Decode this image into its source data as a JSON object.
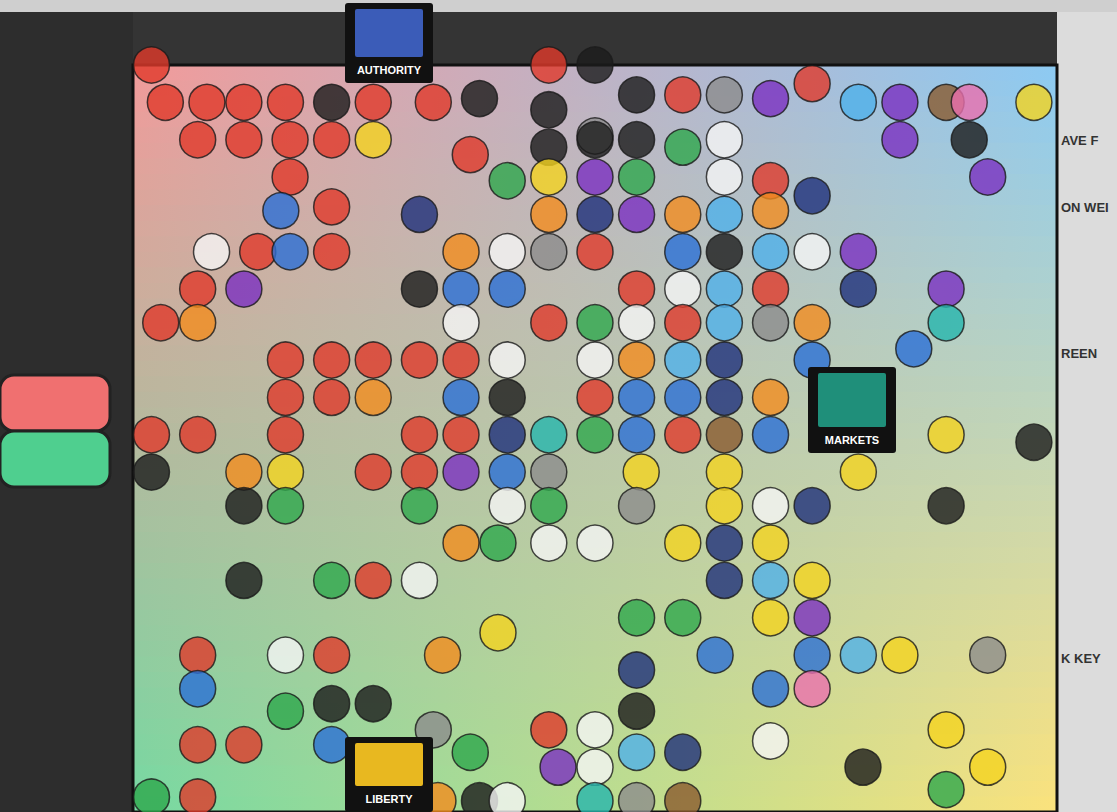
{
  "chart_data": {
    "type": "scatter",
    "annotations": [
      "AUTHORITY",
      "MARKETS",
      "LIBERTY",
      "AVE F",
      "ON WEI",
      "REEN",
      "K KEY"
    ],
    "xlim": [
      -10,
      10
    ],
    "ylim": [
      -10,
      10
    ],
    "tick_labels": false,
    "grid": false,
    "marker": "circle",
    "x": [
      -1.0,
      0.0,
      -9.6,
      -9.3,
      -8.4,
      -7.6,
      -6.7,
      -5.7,
      -4.8,
      -3.5,
      -2.5,
      -1.0,
      0.0,
      0.9,
      1.9,
      2.8,
      3.8,
      4.7,
      5.7,
      6.6,
      7.6,
      8.1,
      9.5,
      -8.6,
      -7.6,
      -6.6,
      -5.7,
      -4.8,
      -2.7,
      -1.9,
      -1.0,
      0.0,
      0.9,
      1.9,
      2.8,
      3.8,
      4.7,
      6.6,
      8.1,
      -6.6,
      -1.0,
      0.0,
      0.9,
      2.8,
      8.5,
      -6.8,
      -5.7,
      -3.8,
      -1.0,
      0.0,
      0.9,
      1.9,
      2.8,
      3.8,
      -8.3,
      -7.3,
      -6.6,
      -5.7,
      -2.9,
      -1.9,
      -1.0,
      0.0,
      1.9,
      2.8,
      3.8,
      4.7,
      5.7,
      -8.6,
      -7.6,
      -3.8,
      -2.9,
      -1.9,
      0.9,
      1.9,
      2.8,
      3.8,
      5.7,
      7.6,
      -9.4,
      -8.6,
      -2.9,
      -1.0,
      0.0,
      0.9,
      1.9,
      2.8,
      3.8,
      4.7,
      7.6,
      -6.7,
      -5.7,
      -4.8,
      -3.8,
      -2.9,
      -1.9,
      0.0,
      0.9,
      1.9,
      2.8,
      4.7,
      6.9,
      -6.7,
      -5.7,
      -4.8,
      -2.9,
      -1.9,
      0.0,
      0.9,
      1.9,
      2.8,
      3.8,
      -9.6,
      -8.6,
      -6.7,
      -3.8,
      -2.9,
      -1.9,
      -1.0,
      0.0,
      0.9,
      1.9,
      2.8,
      3.8,
      7.6,
      9.5,
      -9.6,
      -7.6,
      -6.7,
      -4.8,
      -3.8,
      -2.9,
      -1.9,
      -1.0,
      1.0,
      2.8,
      5.7,
      -7.6,
      -6.7,
      -3.8,
      -1.9,
      -1.0,
      0.9,
      2.8,
      3.8,
      4.7,
      7.6,
      -2.9,
      -2.1,
      -1.0,
      0.0,
      1.9,
      2.8,
      3.8,
      -7.6,
      -5.7,
      -4.8,
      -3.8,
      2.8,
      3.8,
      4.7,
      -2.1,
      0.9,
      1.9,
      3.8,
      4.7,
      -8.6,
      -6.7,
      -5.7,
      -3.3,
      0.9,
      2.6,
      4.7,
      5.7,
      6.6,
      8.5,
      -8.6,
      -6.7,
      -5.7,
      -4.8,
      3.8,
      4.7,
      -8.6,
      -7.6,
      -3.5,
      -1.0,
      0.0,
      0.9,
      7.6,
      -9.6,
      -8.6,
      -5.7,
      -2.7,
      -0.8,
      0.0,
      0.9,
      1.9,
      3.8,
      5.8,
      8.5,
      -3.4,
      -2.5,
      -1.9,
      0.0,
      0.9,
      1.9,
      7.6
    ],
    "values": [
      10.0,
      10.0,
      10.0,
      9.0,
      9.0,
      9.0,
      9.0,
      9.0,
      9.0,
      9.0,
      9.1,
      8.8,
      8.1,
      9.2,
      9.2,
      9.2,
      9.1,
      9.5,
      9.0,
      9.0,
      9.0,
      9.0,
      9.0,
      8.0,
      8.0,
      8.0,
      8.0,
      8.0,
      7.6,
      6.9,
      7.8,
      8.0,
      8.0,
      7.8,
      8.0,
      6.9,
      6.5,
      8.0,
      8.0,
      7.0,
      7.0,
      7.0,
      7.0,
      7.0,
      7.0,
      6.1,
      6.2,
      6.0,
      6.0,
      6.0,
      6.0,
      6.0,
      6.0,
      6.1,
      5.0,
      5.0,
      5.0,
      5.0,
      5.0,
      5.0,
      5.0,
      5.0,
      5.0,
      5.0,
      5.0,
      5.0,
      5.0,
      4.0,
      4.0,
      4.0,
      4.0,
      4.0,
      4.0,
      4.0,
      4.0,
      4.0,
      4.0,
      4.0,
      3.1,
      3.1,
      3.1,
      3.1,
      3.1,
      3.1,
      3.1,
      3.1,
      3.1,
      3.1,
      3.1,
      2.1,
      2.1,
      2.1,
      2.1,
      2.1,
      2.1,
      2.1,
      2.1,
      2.1,
      2.1,
      2.1,
      2.4,
      1.1,
      1.1,
      1.1,
      1.1,
      1.1,
      1.1,
      1.1,
      1.1,
      1.1,
      1.1,
      0.1,
      0.1,
      0.1,
      0.1,
      0.1,
      0.1,
      0.1,
      0.1,
      0.1,
      0.1,
      0.1,
      0.1,
      0.1,
      -0.1,
      -0.9,
      -0.9,
      -0.9,
      -0.9,
      -0.9,
      -0.9,
      -0.9,
      -0.9,
      -0.9,
      -0.9,
      -0.9,
      -1.8,
      -1.8,
      -1.8,
      -1.8,
      -1.8,
      -1.8,
      -1.8,
      -1.8,
      -1.8,
      -1.8,
      -2.8,
      -2.8,
      -2.8,
      -2.8,
      -2.8,
      -2.8,
      -2.8,
      -3.8,
      -3.8,
      -3.8,
      -3.8,
      -3.8,
      -3.8,
      -3.8,
      -5.2,
      -4.8,
      -4.8,
      -4.8,
      -4.8,
      -5.8,
      -5.8,
      -5.8,
      -5.8,
      -6.2,
      -5.8,
      -5.8,
      -5.8,
      -5.8,
      -5.8,
      -6.7,
      -7.3,
      -7.1,
      -7.1,
      -6.7,
      -6.7,
      -8.2,
      -8.2,
      -7.8,
      -7.8,
      -7.8,
      -7.3,
      -7.8,
      -9.6,
      -9.6,
      -8.2,
      -8.4,
      -8.8,
      -8.8,
      -8.4,
      -8.4,
      -8.1,
      -8.8,
      -8.8,
      -9.7,
      -9.7,
      -9.7,
      -9.7,
      -9.7,
      -9.7,
      -9.4
    ],
    "colors": [
      "#e0392b",
      "#1c1c1c",
      "#e0392b",
      "#e0392b",
      "#e0392b",
      "#e0392b",
      "#e0392b",
      "#1c1c1c",
      "#e0392b",
      "#e0392b",
      "#1c1c1c",
      "#1c1c1c",
      "#8c8c8c",
      "#1c1c1c",
      "#e0392b",
      "#8c8c8c",
      "#7a2fc0",
      "#e0392b",
      "#4fb0ea",
      "#7a2fc0",
      "#8a5a2e",
      "#ea6fae",
      "#f4d31f",
      "#e0392b",
      "#e0392b",
      "#e0392b",
      "#e0392b",
      "#f4d31f",
      "#e0392b",
      "#2ea84c",
      "#1c1c1c",
      "#1c1c1c",
      "#1c1c1c",
      "#2ea84c",
      "#f5f5f5",
      "#e0392b",
      "#1e2f7a",
      "#7a2fc0",
      "#1c1c1c",
      "#e0392b",
      "#f4d31f",
      "#7a2fc0",
      "#2ea84c",
      "#f5f5f5",
      "#7a2fc0",
      "#2b6fd6",
      "#e0392b",
      "#1e2f7a",
      "#f28c1e",
      "#1e2f7a",
      "#7a2fc0",
      "#f28c1e",
      "#4fb0ea",
      "#f28c1e",
      "#f5f5f5",
      "#e0392b",
      "#2b6fd6",
      "#e0392b",
      "#f28c1e",
      "#f5f5f5",
      "#8c8c8c",
      "#e0392b",
      "#2b6fd6",
      "#1c1c1c",
      "#4fb0ea",
      "#f5f5f5",
      "#7a2fc0",
      "#e0392b",
      "#7a2fc0",
      "#1c1c1c",
      "#2b6fd6",
      "#2b6fd6",
      "#e0392b",
      "#f5f5f5",
      "#4fb0ea",
      "#e0392b",
      "#1e2f7a",
      "#7a2fc0",
      "#e0392b",
      "#f28c1e",
      "#f5f5f5",
      "#e0392b",
      "#2ea84c",
      "#f5f5f5",
      "#e0392b",
      "#4fb0ea",
      "#8c8c8c",
      "#f28c1e",
      "#26b5ad",
      "#e0392b",
      "#e0392b",
      "#e0392b",
      "#e0392b",
      "#e0392b",
      "#f5f5f5",
      "#f5f5f5",
      "#f28c1e",
      "#4fb0ea",
      "#1e2f7a",
      "#2b6fd6",
      "#2b6fd6",
      "#e0392b",
      "#e0392b",
      "#f28c1e",
      "#2b6fd6",
      "#1c1c1c",
      "#e0392b",
      "#2b6fd6",
      "#2b6fd6",
      "#1e2f7a",
      "#f28c1e",
      "#e0392b",
      "#e0392b",
      "#e0392b",
      "#e0392b",
      "#e0392b",
      "#1e2f7a",
      "#26b5ad",
      "#2ea84c",
      "#2b6fd6",
      "#e0392b",
      "#8a5a2e",
      "#2b6fd6",
      "#f4d31f",
      "#1c1c1c",
      "#1c1c1c",
      "#f28c1e",
      "#f4d31f",
      "#e0392b",
      "#e0392b",
      "#7a2fc0",
      "#2b6fd6",
      "#8c8c8c",
      "#f4d31f",
      "#f4d31f",
      "#f4d31f",
      "#1c1c1c",
      "#2ea84c",
      "#2ea84c",
      "#f5f5f5",
      "#2ea84c",
      "#8c8c8c",
      "#f4d31f",
      "#f5f5f5",
      "#1e2f7a",
      "#1c1c1c",
      "#f28c1e",
      "#2ea84c",
      "#f5f5f5",
      "#f5f5f5",
      "#f4d31f",
      "#1e2f7a",
      "#f4d31f",
      "#1c1c1c",
      "#2ea84c",
      "#e0392b",
      "#f5f5f5",
      "#1e2f7a",
      "#4fb0ea",
      "#f4d31f",
      "#f4d31f",
      "#2ea84c",
      "#2ea84c",
      "#f4d31f",
      "#7a2fc0",
      "#e0392b",
      "#f5f5f5",
      "#e0392b",
      "#f28c1e",
      "#1e2f7a",
      "#2b6fd6",
      "#2b6fd6",
      "#4fb0ea",
      "#f4d31f",
      "#8c8c8c",
      "#2b6fd6",
      "#2ea84c",
      "#1c1c1c",
      "#1c1c1c",
      "#2b6fd6",
      "#ea6fae",
      "#e0392b",
      "#e0392b",
      "#8c8c8c",
      "#e0392b",
      "#f5f5f5",
      "#1c1c1c",
      "#f4d31f",
      "#2ea84c",
      "#e0392b",
      "#2b6fd6",
      "#2ea84c",
      "#7a2fc0",
      "#f5f5f5",
      "#4fb0ea",
      "#1e2f7a",
      "#f5f5f5",
      "#1c1c1c",
      "#f4d31f",
      "#f28c1e",
      "#1c1c1c",
      "#f5f5f5",
      "#26b5ad",
      "#8c8c8c",
      "#8a5a2e",
      "#2ea84c"
    ]
  }
}
